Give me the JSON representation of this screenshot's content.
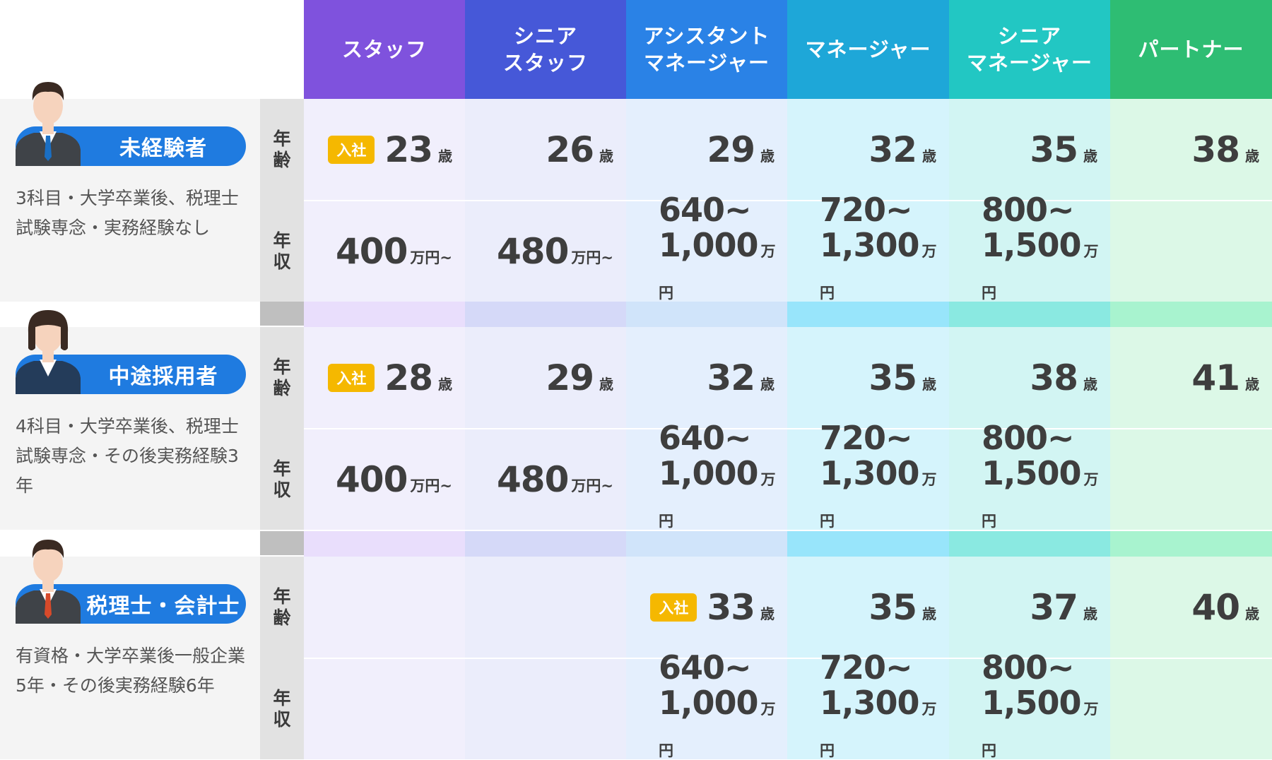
{
  "headers": [
    {
      "lines": [
        "スタッフ"
      ],
      "color": "#7f52dd"
    },
    {
      "lines": [
        "シニア",
        "スタッフ"
      ],
      "color": "#4658d8"
    },
    {
      "lines": [
        "アシスタント",
        "マネージャー"
      ],
      "color": "#2a82e6"
    },
    {
      "lines": [
        "マネージャー"
      ],
      "color": "#1ea7d8"
    },
    {
      "lines": [
        "シニア",
        "マネージャー"
      ],
      "color": "#22c7c3"
    },
    {
      "lines": [
        "パートナー"
      ],
      "color": "#2ebd73"
    }
  ],
  "column_colors": {
    "cell": [
      "#f1effc",
      "#ebedfb",
      "#e4effd",
      "#d5f4fc",
      "#d2f5f3",
      "#dcf8e7"
    ],
    "band": [
      "#e9defc",
      "#d5d9f8",
      "#d0e4fa",
      "#98e5fb",
      "#8ae9e1",
      "#a8f3cf"
    ]
  },
  "row_labels": {
    "age": [
      "年",
      "齢"
    ],
    "salary": [
      "年",
      "収"
    ]
  },
  "badge_label": "入社",
  "age_unit": "歳",
  "salary_unit": "万円",
  "salary_suffix_open": "万円~",
  "groups": [
    {
      "title": "未経験者",
      "desc": "3科目・大学卒業後、税理士試験専念・実務経験なし",
      "person": {
        "gender": "male",
        "tie": "#1a6fc4"
      },
      "ages": [
        "23",
        "26",
        "29",
        "32",
        "35",
        "38"
      ],
      "entry_col": 0,
      "salaries": [
        {
          "type": "open",
          "value": "400"
        },
        {
          "type": "open",
          "value": "480"
        },
        {
          "type": "range",
          "from": "640~",
          "to": "1,000"
        },
        {
          "type": "range",
          "from": "720~",
          "to": "1,300"
        },
        {
          "type": "range",
          "from": "800~",
          "to": "1,500"
        },
        {
          "type": "none"
        }
      ]
    },
    {
      "title": "中途採用者",
      "desc": "4科目・大学卒業後、税理士試験専念・その後実務経験3年",
      "person": {
        "gender": "female",
        "tie": "#ffffff"
      },
      "ages": [
        "28",
        "29",
        "32",
        "35",
        "38",
        "41"
      ],
      "entry_col": 0,
      "salaries": [
        {
          "type": "open",
          "value": "400"
        },
        {
          "type": "open",
          "value": "480"
        },
        {
          "type": "range",
          "from": "640~",
          "to": "1,000"
        },
        {
          "type": "range",
          "from": "720~",
          "to": "1,300"
        },
        {
          "type": "range",
          "from": "800~",
          "to": "1,500"
        },
        {
          "type": "none"
        }
      ]
    },
    {
      "title": "税理士・会計士",
      "desc": "有資格・大学卒業後一般企業5年・その後実務経験6年",
      "person": {
        "gender": "male",
        "tie": "#d84a2a"
      },
      "ages": [
        "",
        "",
        "33",
        "35",
        "37",
        "40"
      ],
      "entry_col": 2,
      "salaries": [
        {
          "type": "none"
        },
        {
          "type": "none"
        },
        {
          "type": "range",
          "from": "640~",
          "to": "1,000"
        },
        {
          "type": "range",
          "from": "720~",
          "to": "1,300"
        },
        {
          "type": "range",
          "from": "800~",
          "to": "1,500"
        },
        {
          "type": "none"
        }
      ]
    }
  ]
}
